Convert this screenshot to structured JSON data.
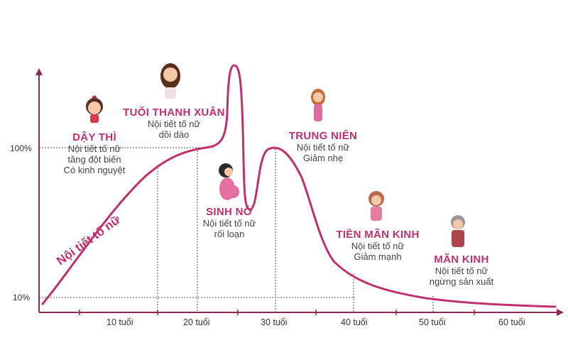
{
  "colors": {
    "accent": "#c0306e",
    "axis": "#8a2a5a",
    "text": "#444444",
    "guide": "#555555"
  },
  "curve_label": "Nội tiết tố nữ",
  "y_axis": {
    "ticks": [
      {
        "value": 10,
        "label": "10%"
      },
      {
        "value": 100,
        "label": "100%"
      }
    ]
  },
  "x_axis": {
    "ticks": [
      "10 tuổi",
      "20 tuổi",
      "30 tuổi",
      "40 tuổi",
      "50 tuổi",
      "60 tuổi"
    ]
  },
  "stages": [
    {
      "title": "DẬY THÌ",
      "lines": [
        "Nội tiết tố nữ",
        "tăng đột biến",
        "Có kinh nguyệt"
      ],
      "icon": "girl-icon"
    },
    {
      "title": "TUỔI THANH XUÂN",
      "lines": [
        "Nội tiết tố nữ",
        "dồi dào"
      ],
      "icon": "young-woman-icon"
    },
    {
      "title": "SINH NỞ",
      "lines": [
        "Nội tiết tố nữ",
        "rối loạn"
      ],
      "icon": "pregnant-woman-icon"
    },
    {
      "title": "TRUNG NIÊN",
      "lines": [
        "Nội tiết tố nữ",
        "Giảm nhẹ"
      ],
      "icon": "woman-icon"
    },
    {
      "title": "TIỀN MÃN KINH",
      "lines": [
        "Nội tiết tố nữ",
        "Giảm mạnh"
      ],
      "icon": "middle-aged-woman-icon"
    },
    {
      "title": "MÃN KINH",
      "lines": [
        "Nội tiết tố nữ",
        "ngừng sản xuất"
      ],
      "icon": "elderly-woman-icon"
    }
  ]
}
